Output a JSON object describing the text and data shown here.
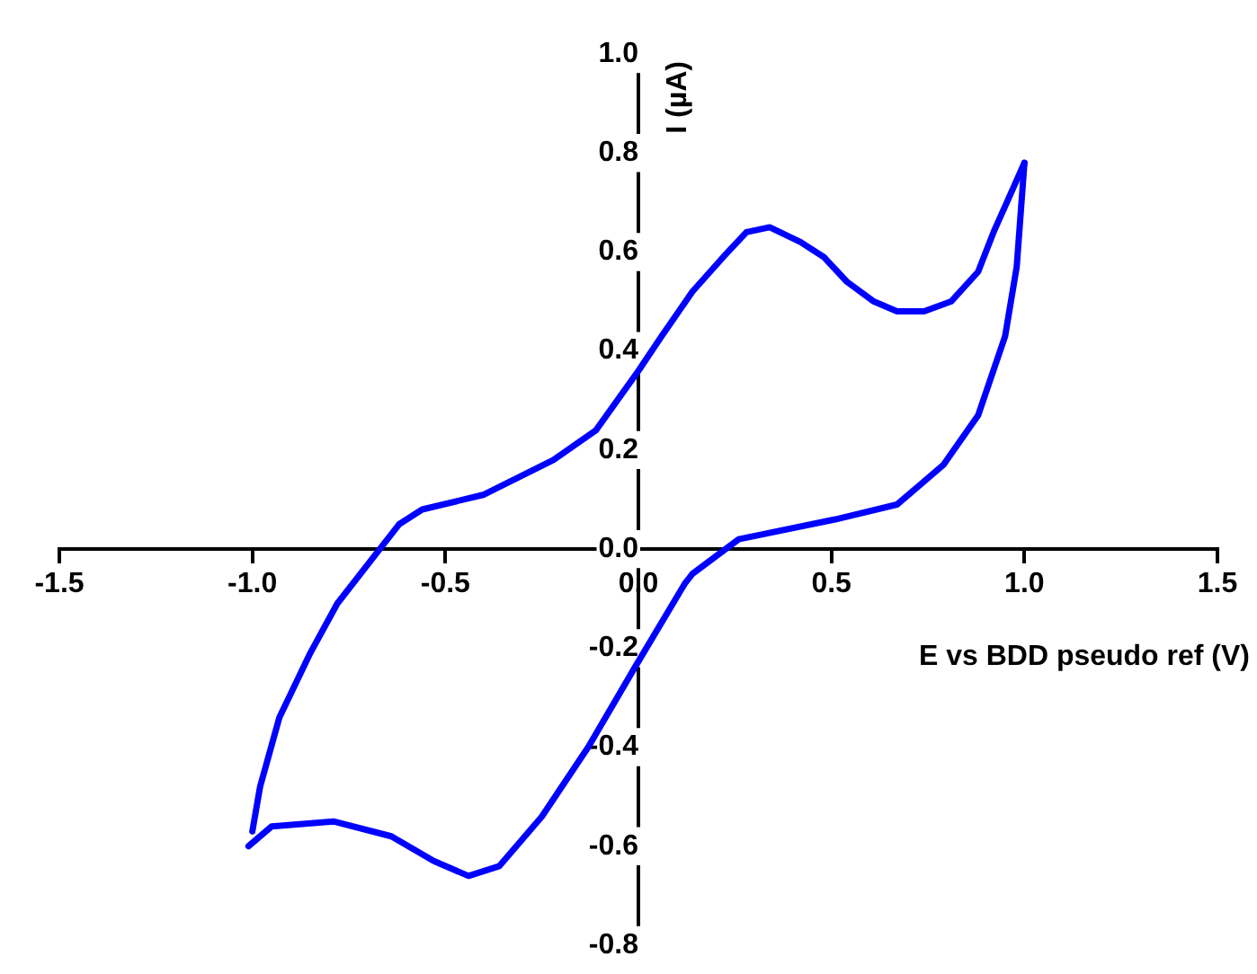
{
  "chart_data": {
    "type": "line",
    "xlabel": "E vs BDD pseudo ref (V)",
    "ylabel": "I (µA)",
    "xlim": [
      -1.5,
      1.5
    ],
    "ylim": [
      -0.8,
      1.0
    ],
    "xticks": [
      {
        "value": -1.5,
        "label": "-1.5"
      },
      {
        "value": -1,
        "label": "-1.0"
      },
      {
        "value": -0.5,
        "label": "-0.5"
      },
      {
        "value": 0,
        "label": "0.0"
      },
      {
        "value": 0.5,
        "label": "0.5"
      },
      {
        "value": 1,
        "label": "1.0"
      },
      {
        "value": 1.5,
        "label": "1.5"
      }
    ],
    "yticks": [
      {
        "value": -0.8,
        "label": "-0.8"
      },
      {
        "value": -0.6,
        "label": "-0.6"
      },
      {
        "value": -0.4,
        "label": "-0.4"
      },
      {
        "value": -0.2,
        "label": "-0.2"
      },
      {
        "value": 0,
        "label": "0.0"
      },
      {
        "value": 0.2,
        "label": "0.2"
      },
      {
        "value": 0.4,
        "label": "0.4"
      },
      {
        "value": 0.6,
        "label": "0.6"
      },
      {
        "value": 0.8,
        "label": "0.8"
      },
      {
        "value": 1,
        "label": "1.0"
      }
    ],
    "grid": false,
    "legend": false,
    "marker": "none",
    "line_style": "solid",
    "series": [
      {
        "color": "#0000ff",
        "x": [
          -1.01,
          -0.95,
          -0.79,
          -0.64,
          -0.53,
          -0.44,
          -0.36,
          -0.25,
          -0.13,
          -0.01,
          0.12,
          0.14,
          0.26,
          0.51,
          0.67,
          0.79,
          0.88,
          0.95,
          0.98,
          1.0
        ],
        "values": [
          -0.6,
          -0.56,
          -0.55,
          -0.58,
          -0.63,
          -0.66,
          -0.64,
          -0.54,
          -0.4,
          -0.24,
          -0.07,
          -0.05,
          0.02,
          0.06,
          0.09,
          0.17,
          0.27,
          0.43,
          0.57,
          0.78
        ]
      },
      {
        "color": "#0000ff",
        "x": [
          1.0,
          0.96,
          0.92,
          0.88,
          0.81,
          0.74,
          0.67,
          0.61,
          0.54,
          0.48,
          0.42,
          0.34,
          0.28,
          0.22,
          0.14,
          0.06,
          0,
          -0.11,
          -0.22,
          -0.4,
          -0.56,
          -0.62,
          -0.68,
          -0.78,
          -0.85,
          -0.93,
          -0.98,
          -1.0
        ],
        "values": [
          0.78,
          0.71,
          0.64,
          0.56,
          0.5,
          0.48,
          0.48,
          0.5,
          0.54,
          0.59,
          0.62,
          0.65,
          0.64,
          0.59,
          0.52,
          0.43,
          0.36,
          0.24,
          0.18,
          0.11,
          0.08,
          0.05,
          -0.01,
          -0.11,
          -0.21,
          -0.34,
          -0.48,
          -0.57
        ]
      }
    ]
  }
}
